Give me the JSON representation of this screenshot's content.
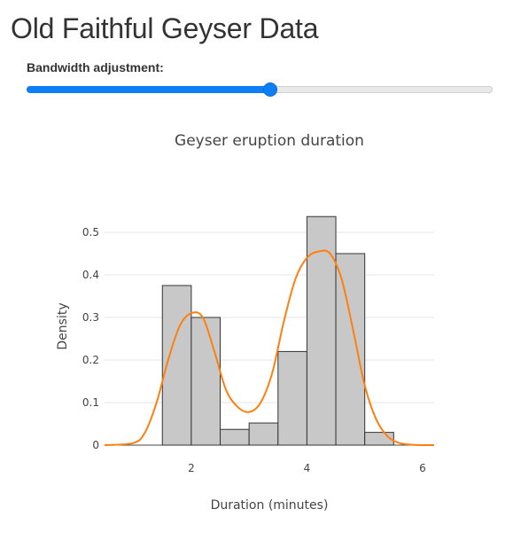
{
  "page": {
    "title": "Old Faithful Geyser Data"
  },
  "control": {
    "label": "Bandwidth adjustment:",
    "value_fraction": 0.52
  },
  "colors": {
    "slider_accent": "#0d7ff4",
    "bar_fill": "#c8c8c8",
    "bar_stroke": "#333333",
    "density_line": "#ff7f0e",
    "grid": "#e6e6e6"
  },
  "chart_data": {
    "type": "bar",
    "title": "Geyser eruption duration",
    "xlabel": "Duration (minutes)",
    "ylabel": "Density",
    "xlim": [
      0.5,
      6.2
    ],
    "ylim": [
      0,
      0.55
    ],
    "xticks": [
      2,
      4,
      6
    ],
    "yticks": [
      0,
      0.1,
      0.2,
      0.3,
      0.4,
      0.5
    ],
    "ytick_labels": [
      "0",
      "0.1",
      "0.2",
      "0.3",
      "0.4",
      "0.5"
    ],
    "grid": true,
    "histogram": {
      "bin_edges": [
        1.5,
        2.0,
        2.5,
        3.0,
        3.5,
        4.0,
        4.5,
        5.0,
        5.5
      ],
      "values": [
        0.375,
        0.3,
        0.037,
        0.052,
        0.22,
        0.537,
        0.45,
        0.03
      ]
    },
    "density": {
      "x": [
        0.5,
        1.0,
        1.2,
        1.4,
        1.6,
        1.8,
        2.0,
        2.2,
        2.4,
        2.6,
        2.8,
        3.0,
        3.2,
        3.4,
        3.6,
        3.8,
        4.0,
        4.2,
        4.4,
        4.6,
        4.8,
        5.0,
        5.2,
        5.4,
        5.6,
        5.8,
        6.0,
        6.2
      ],
      "y": [
        0.0,
        0.005,
        0.03,
        0.1,
        0.2,
        0.28,
        0.31,
        0.3,
        0.22,
        0.13,
        0.09,
        0.078,
        0.1,
        0.17,
        0.29,
        0.39,
        0.44,
        0.455,
        0.45,
        0.39,
        0.27,
        0.14,
        0.06,
        0.02,
        0.005,
        0.001,
        0.0,
        0.0
      ]
    }
  }
}
